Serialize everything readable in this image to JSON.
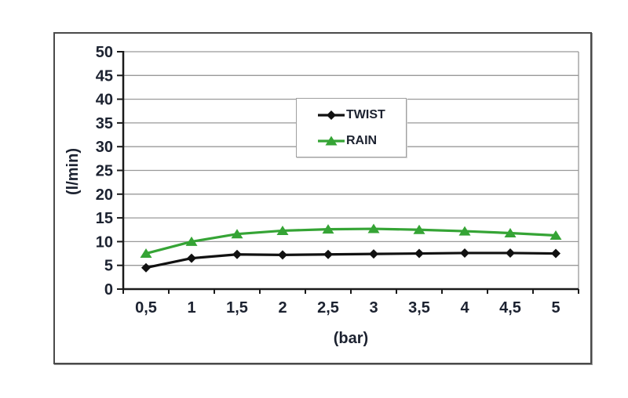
{
  "window": {
    "background_color": "#ffffff",
    "chart_border_color": "#4a4a4a"
  },
  "legend": {
    "border_color": "#9f9f9f",
    "position": "upper-center"
  },
  "chart_data": {
    "type": "line",
    "title": "",
    "xlabel": "(bar)",
    "ylabel": "(l/min)",
    "categories": [
      "0,5",
      "1",
      "1,5",
      "2",
      "2,5",
      "3",
      "3,5",
      "4",
      "4,5",
      "5"
    ],
    "x_values": [
      0.5,
      1,
      1.5,
      2,
      2.5,
      3,
      3.5,
      4,
      4.5,
      5
    ],
    "series": [
      {
        "name": "TWIST",
        "color": "#111111",
        "marker": "diamond",
        "values": [
          4.5,
          6.5,
          7.3,
          7.2,
          7.3,
          7.4,
          7.5,
          7.6,
          7.6,
          7.5
        ]
      },
      {
        "name": "RAIN",
        "color": "#35a435",
        "marker": "triangle",
        "values": [
          7.5,
          10,
          11.6,
          12.3,
          12.6,
          12.7,
          12.5,
          12.2,
          11.8,
          11.3
        ]
      }
    ],
    "ylim": [
      0,
      50
    ],
    "y_tick_step": 5,
    "y_ticks": [
      "0",
      "5",
      "10",
      "15",
      "20",
      "25",
      "30",
      "35",
      "40",
      "45",
      "50"
    ],
    "grid": true,
    "gridline_color": "#999999",
    "axis_color": "#1a1a1a",
    "tick_label_color": "#1c2230",
    "legend_position": "upper-center"
  }
}
